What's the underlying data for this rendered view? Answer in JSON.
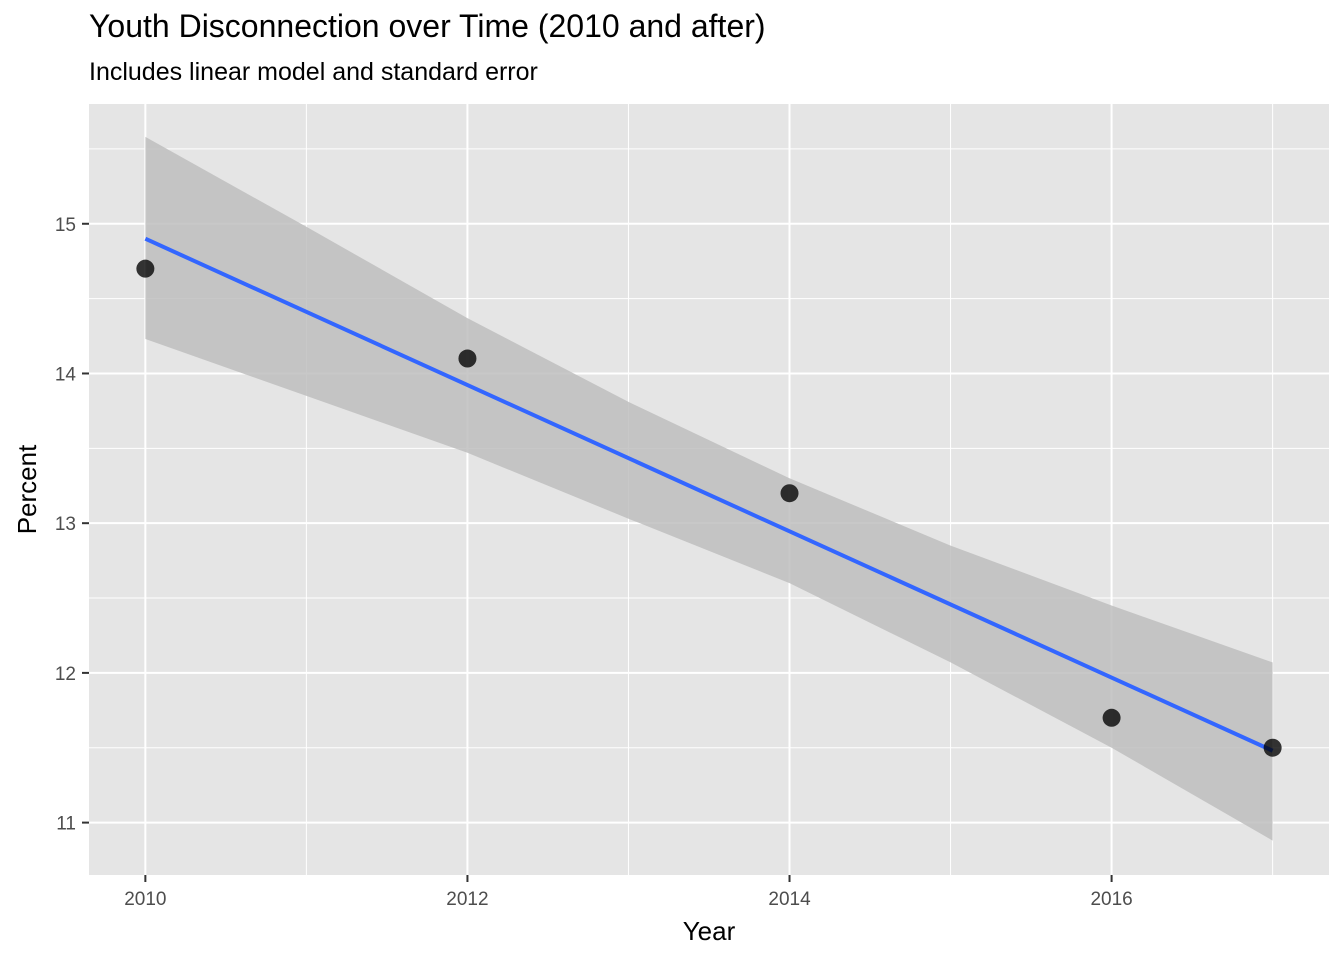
{
  "chart_data": {
    "type": "scatter",
    "title": "Youth Disconnection over Time (2010 and after)",
    "subtitle": "Includes linear model and standard error",
    "xlabel": "Year",
    "ylabel": "Percent",
    "x": [
      2010,
      2012,
      2014,
      2016,
      2017
    ],
    "y": [
      14.7,
      14.1,
      13.2,
      11.7,
      11.5
    ],
    "xlim": [
      2009.65,
      2017.35
    ],
    "ylim": [
      10.65,
      15.8
    ],
    "x_ticks": [
      2010,
      2012,
      2014,
      2016
    ],
    "y_ticks": [
      11,
      12,
      13,
      14,
      15
    ],
    "x_tick_labels": [
      "2010",
      "2012",
      "2014",
      "2016"
    ],
    "y_tick_labels": [
      "11",
      "12",
      "13",
      "14",
      "15"
    ],
    "fit_line": {
      "x": [
        2010,
        2017
      ],
      "y": [
        14.9,
        11.48
      ]
    },
    "confidence_band": {
      "x": [
        2010,
        2011,
        2012,
        2013,
        2014,
        2015,
        2016,
        2017
      ],
      "upper": [
        15.58,
        14.98,
        14.37,
        13.81,
        13.3,
        12.85,
        12.45,
        12.07
      ],
      "lower": [
        14.23,
        13.85,
        13.47,
        13.03,
        12.6,
        12.07,
        11.5,
        10.88
      ]
    },
    "grid": true,
    "colors": {
      "panel": "#e5e5e5",
      "grid": "#ffffff",
      "line": "#3366ff",
      "band": "#bebebe",
      "point": "#000000"
    }
  }
}
